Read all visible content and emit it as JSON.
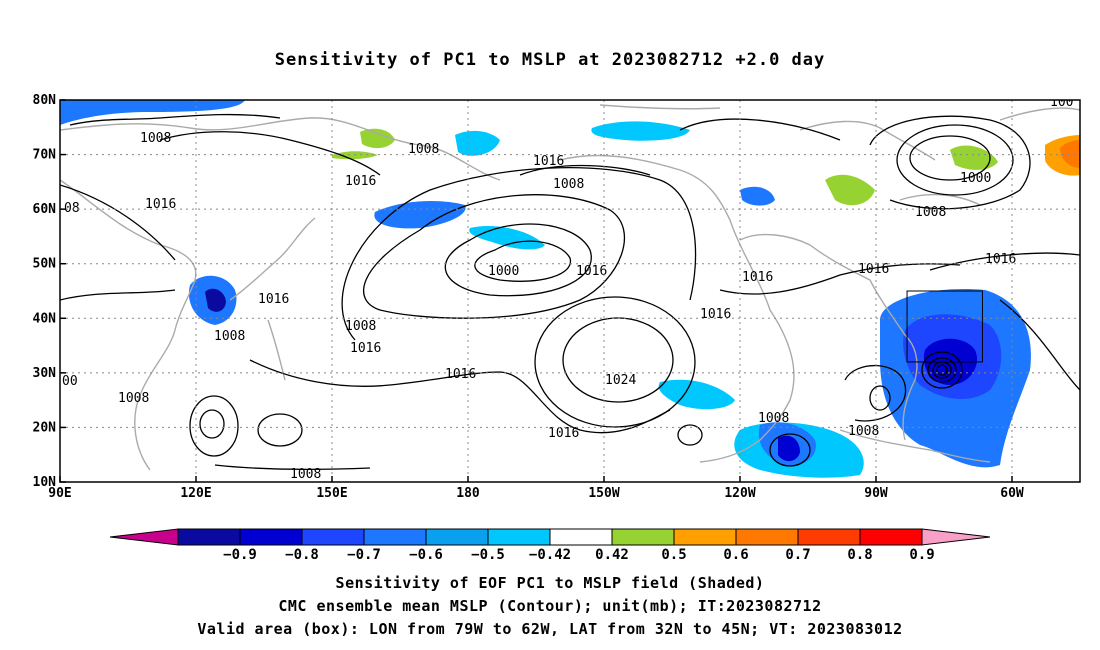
{
  "title": "Sensitivity of PC1 to MSLP at 2023082712 +2.0 day",
  "axes": {
    "lon_ticks": [
      "90E",
      "120E",
      "150E",
      "180",
      "150W",
      "120W",
      "90W",
      "60W"
    ],
    "lat_ticks": [
      "80N",
      "70N",
      "60N",
      "50N",
      "40N",
      "30N",
      "20N",
      "10N"
    ]
  },
  "colorbar": {
    "labels": [
      "-0.9",
      "-0.8",
      "-0.7",
      "-0.6",
      "-0.5",
      "-0.42",
      "0.42",
      "0.5",
      "0.6",
      "0.7",
      "0.8",
      "0.9"
    ],
    "colors": [
      "#c8008c",
      "#0a0aa0",
      "#0000d2",
      "#1e46ff",
      "#1e78ff",
      "#0aa0f0",
      "#00c8ff",
      "#ffffff",
      "#96d232",
      "#ffa000",
      "#ff7800",
      "#ff3c00",
      "#ff0000",
      "#f8a0c8"
    ]
  },
  "contour_labels": [
    "1008",
    "1008",
    "1016",
    "1016",
    "1008",
    "1016",
    "1000",
    "1016",
    "1016",
    "1016",
    "1000",
    "1008",
    "1016",
    "1016",
    "1016",
    "1008",
    "1008",
    "1016",
    "1024",
    "1016",
    "1008",
    "1008",
    "1008",
    "00",
    "08",
    "100"
  ],
  "valid_box": {
    "lon": [
      -79,
      -62
    ],
    "lat": [
      32,
      45
    ]
  },
  "footer": {
    "line1": "Sensitivity of EOF PC1 to MSLP field (Shaded)",
    "line2": "CMC ensemble mean MSLP (Contour); unit(mb); IT:2023082712",
    "line3": "Valid area (box): LON from 79W to 62W, LAT from 32N to 45N; VT: 2023083012"
  }
}
